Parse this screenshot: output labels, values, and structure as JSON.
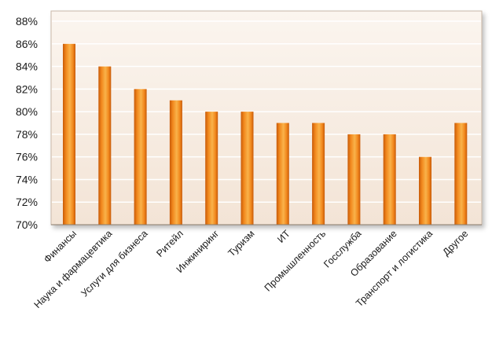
{
  "chart_data": {
    "type": "bar",
    "title": "",
    "xlabel": "",
    "ylabel": "",
    "categories": [
      "Финансы",
      "Наука и фармацевтика",
      "Услуги для бизнеса",
      "Ритейл",
      "Инжиниринг",
      "Туризм",
      "ИТ",
      "Промышленность",
      "Госслужба",
      "Образование",
      "Транспорт и логистика",
      "Другое"
    ],
    "values": [
      86,
      84,
      82,
      81,
      80,
      80,
      79,
      79,
      78,
      78,
      76,
      79
    ],
    "ylim": [
      70,
      88
    ],
    "yticks": [
      70,
      72,
      74,
      76,
      78,
      80,
      82,
      84,
      86,
      88
    ],
    "ytick_labels": [
      "70%",
      "72%",
      "74%",
      "76%",
      "78%",
      "80%",
      "82%",
      "84%",
      "86%",
      "88%"
    ],
    "grid": true,
    "legend": "none",
    "colors": {
      "bar_light": "#f9b24a",
      "bar_mid": "#f2891e",
      "bar_dark": "#c85a08",
      "plot_bg_top": "#fbf5ef",
      "plot_bg_bottom": "#f3e4d6",
      "grid": "#ffffff",
      "frame": "#c9b8a8"
    }
  }
}
